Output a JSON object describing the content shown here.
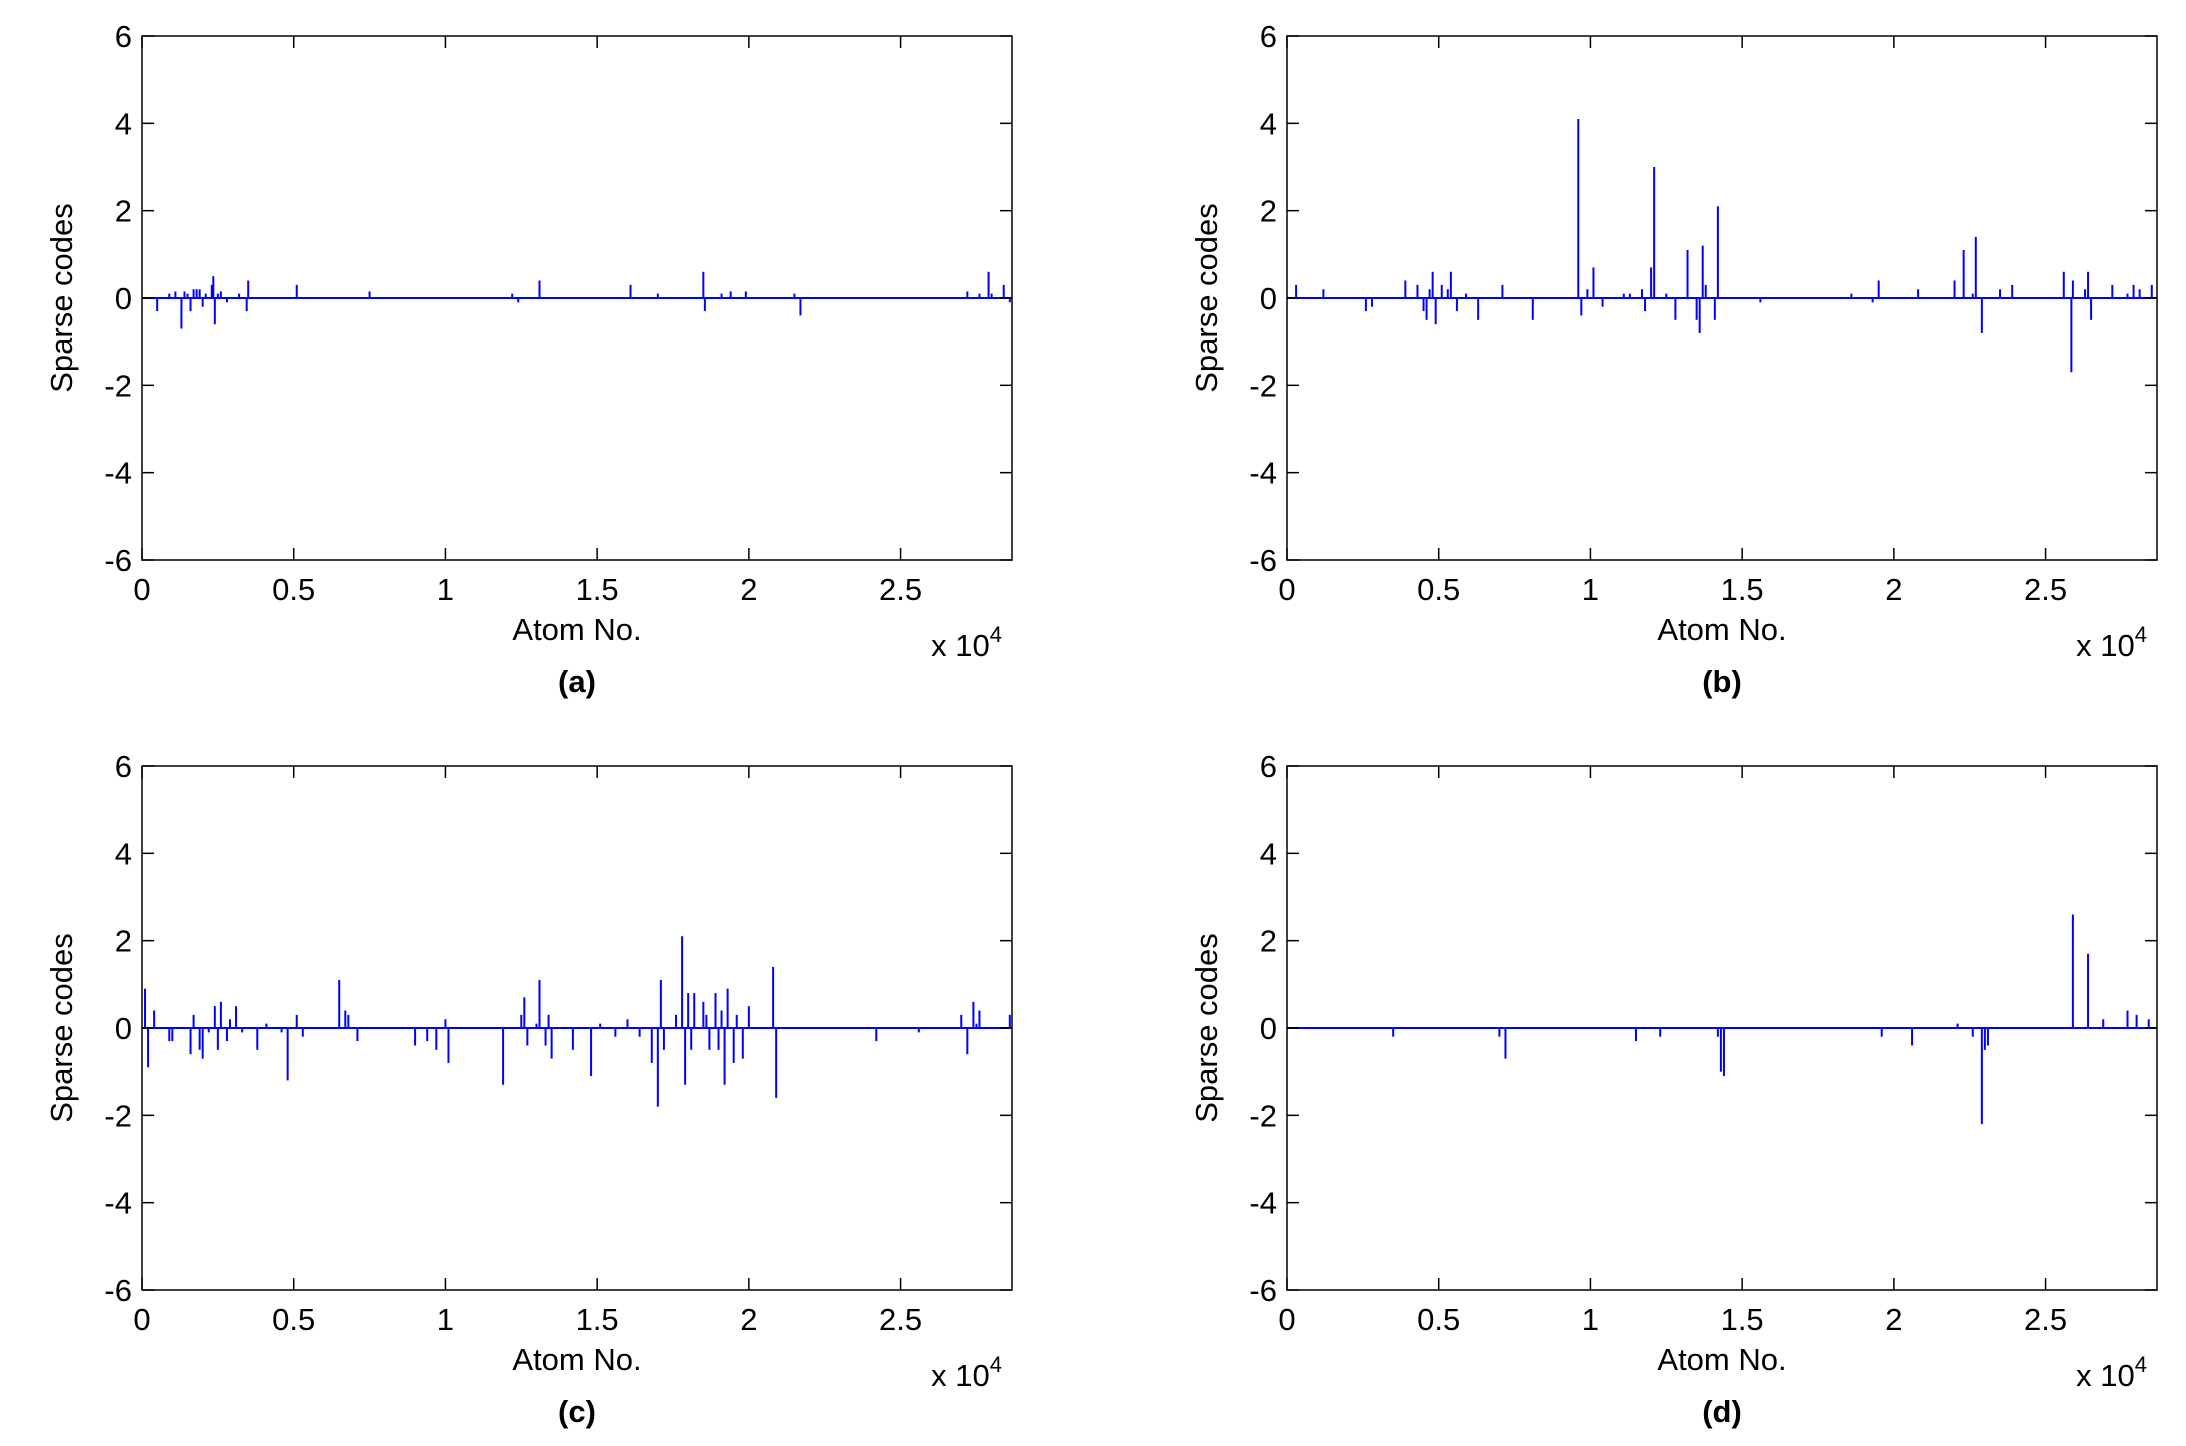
{
  "figure": {
    "axis_color": "#000000",
    "series_color": "#0000ff"
  },
  "chart_data": [
    {
      "type": "stem",
      "panel_label": "(a)",
      "xlabel": "Atom No.",
      "ylabel": "Sparse codes",
      "x_exponent_label": "x 10",
      "x_exponent_power": "4",
      "xlim": [
        0,
        28672
      ],
      "ylim": [
        -6,
        6
      ],
      "xticks": [
        0,
        5000,
        10000,
        15000,
        20000,
        25000
      ],
      "xtick_labels": [
        "0",
        "0.5",
        "1",
        "1.5",
        "2",
        "2.5"
      ],
      "yticks": [
        -6,
        -4,
        -2,
        0,
        2,
        4,
        6
      ],
      "ytick_labels": [
        "-6",
        "-4",
        "-2",
        "0",
        "2",
        "4",
        "6"
      ],
      "grid": false,
      "x": [
        500,
        900,
        1100,
        1300,
        1400,
        1500,
        1600,
        1700,
        1800,
        1900,
        2000,
        2100,
        2300,
        2350,
        2400,
        2500,
        2600,
        2800,
        3200,
        3450,
        3500,
        5100,
        7500,
        12200,
        12400,
        13100,
        16100,
        17000,
        18500,
        18550,
        19100,
        19400,
        19900,
        21500,
        21700,
        27200,
        27600,
        27900,
        28000,
        28400,
        28600
      ],
      "y": [
        -0.3,
        0.1,
        0.15,
        -0.7,
        0.15,
        0.1,
        -0.3,
        0.2,
        0.2,
        0.2,
        -0.2,
        0.1,
        0.3,
        0.5,
        -0.6,
        0.1,
        0.15,
        -0.1,
        0.1,
        -0.3,
        0.4,
        0.3,
        0.15,
        0.1,
        -0.1,
        0.4,
        0.3,
        0.1,
        0.6,
        -0.3,
        0.1,
        0.15,
        0.15,
        0.1,
        -0.4,
        0.15,
        0.1,
        0.6,
        0.1,
        0.3,
        -0.1
      ]
    },
    {
      "type": "stem",
      "panel_label": "(b)",
      "xlabel": "Atom No.",
      "ylabel": "Sparse codes",
      "x_exponent_label": "x 10",
      "x_exponent_power": "4",
      "xlim": [
        0,
        28672
      ],
      "ylim": [
        -6,
        6
      ],
      "xticks": [
        0,
        5000,
        10000,
        15000,
        20000,
        25000
      ],
      "xtick_labels": [
        "0",
        "0.5",
        "1",
        "1.5",
        "2",
        "2.5"
      ],
      "yticks": [
        -6,
        -4,
        -2,
        0,
        2,
        4,
        6
      ],
      "ytick_labels": [
        "-6",
        "-4",
        "-2",
        "0",
        "2",
        "4",
        "6"
      ],
      "grid": false,
      "x": [
        300,
        1200,
        2600,
        2800,
        3900,
        4300,
        4500,
        4600,
        4700,
        4800,
        4900,
        5100,
        5300,
        5400,
        5600,
        5900,
        6300,
        7100,
        8100,
        9600,
        9700,
        9900,
        10100,
        10400,
        11100,
        11300,
        11700,
        11800,
        12000,
        12100,
        12500,
        12800,
        13200,
        13500,
        13600,
        13700,
        13800,
        14100,
        14200,
        15600,
        18600,
        19300,
        19500,
        20800,
        22000,
        22300,
        22600,
        22700,
        22900,
        23500,
        23900,
        25600,
        25850,
        25900,
        26300,
        26400,
        26500,
        27200,
        27700,
        27900,
        28100,
        28500
      ],
      "y": [
        0.3,
        0.2,
        -0.3,
        -0.2,
        0.4,
        0.3,
        -0.3,
        -0.5,
        0.2,
        0.6,
        -0.6,
        0.3,
        0.2,
        0.6,
        -0.3,
        0.1,
        -0.5,
        0.3,
        -0.5,
        4.1,
        -0.4,
        0.2,
        0.7,
        -0.2,
        0.1,
        0.1,
        0.2,
        -0.3,
        0.7,
        3.0,
        0.1,
        -0.5,
        1.1,
        -0.5,
        -0.8,
        1.2,
        0.3,
        -0.5,
        2.1,
        -0.1,
        0.1,
        -0.1,
        0.4,
        0.2,
        0.4,
        1.1,
        0.1,
        1.4,
        -0.8,
        0.2,
        0.3,
        0.6,
        -1.7,
        0.4,
        0.2,
        0.6,
        -0.5,
        0.3,
        0.1,
        0.3,
        0.2,
        0.3
      ]
    },
    {
      "type": "stem",
      "panel_label": "(c)",
      "xlabel": "Atom No.",
      "ylabel": "Sparse codes",
      "x_exponent_label": "x 10",
      "x_exponent_power": "4",
      "xlim": [
        0,
        28672
      ],
      "ylim": [
        -6,
        6
      ],
      "xticks": [
        0,
        5000,
        10000,
        15000,
        20000,
        25000
      ],
      "xtick_labels": [
        "0",
        "0.5",
        "1",
        "1.5",
        "2",
        "2.5"
      ],
      "yticks": [
        -6,
        -4,
        -2,
        0,
        2,
        4,
        6
      ],
      "ytick_labels": [
        "-6",
        "-4",
        "-2",
        "0",
        "2",
        "4",
        "6"
      ],
      "grid": false,
      "x": [
        100,
        200,
        400,
        900,
        1000,
        1600,
        1700,
        1900,
        2000,
        2200,
        2400,
        2500,
        2600,
        2800,
        2900,
        3100,
        3300,
        3800,
        4100,
        4600,
        4800,
        5100,
        5300,
        6500,
        6700,
        6800,
        7100,
        9000,
        9400,
        9700,
        10000,
        10100,
        11900,
        12500,
        12600,
        12700,
        13000,
        13100,
        13300,
        13400,
        13500,
        14200,
        14800,
        15100,
        15600,
        16000,
        16400,
        16800,
        17000,
        17100,
        17200,
        17600,
        17800,
        17900,
        18000,
        18100,
        18200,
        18500,
        18600,
        18700,
        18900,
        19000,
        19100,
        19200,
        19300,
        19500,
        19600,
        19800,
        20000,
        20800,
        20900,
        24200,
        25600,
        27000,
        27200,
        27400,
        27500,
        27600,
        28600
      ],
      "y": [
        0.9,
        -0.9,
        0.4,
        -0.3,
        -0.3,
        -0.6,
        0.3,
        -0.5,
        -0.7,
        -0.1,
        0.5,
        -0.5,
        0.6,
        -0.3,
        0.2,
        0.5,
        -0.1,
        -0.5,
        0.1,
        -0.1,
        -1.2,
        0.3,
        -0.2,
        1.1,
        0.4,
        0.3,
        -0.3,
        -0.4,
        -0.3,
        -0.5,
        0.2,
        -0.8,
        -1.3,
        0.3,
        0.7,
        -0.4,
        0.1,
        1.1,
        -0.4,
        0.3,
        -0.7,
        -0.5,
        -1.1,
        0.1,
        -0.2,
        0.2,
        -0.2,
        -0.8,
        -1.8,
        1.1,
        -0.5,
        0.3,
        2.1,
        -1.3,
        0.8,
        -0.5,
        0.8,
        0.6,
        0.3,
        -0.5,
        0.8,
        -0.5,
        0.4,
        -1.3,
        0.9,
        -0.8,
        0.3,
        -0.7,
        0.5,
        1.4,
        -1.6,
        -0.3,
        -0.1,
        0.3,
        -0.6,
        0.6,
        0.1,
        0.4,
        0.3
      ]
    },
    {
      "type": "stem",
      "panel_label": "(d)",
      "xlabel": "Atom No.",
      "ylabel": "Sparse codes",
      "x_exponent_label": "x 10",
      "x_exponent_power": "4",
      "xlim": [
        0,
        28672
      ],
      "ylim": [
        -6,
        6
      ],
      "xticks": [
        0,
        5000,
        10000,
        15000,
        20000,
        25000
      ],
      "xtick_labels": [
        "0",
        "0.5",
        "1",
        "1.5",
        "2",
        "2.5"
      ],
      "yticks": [
        -6,
        -4,
        -2,
        0,
        2,
        4,
        6
      ],
      "ytick_labels": [
        "-6",
        "-4",
        "-2",
        "0",
        "2",
        "4",
        "6"
      ],
      "grid": false,
      "x": [
        3500,
        7000,
        7200,
        11500,
        12300,
        14200,
        14300,
        14400,
        19600,
        20600,
        22100,
        22600,
        22900,
        23000,
        23100,
        25900,
        26400,
        26900,
        27700,
        28000,
        28400
      ],
      "y": [
        -0.2,
        -0.2,
        -0.7,
        -0.3,
        -0.2,
        -0.2,
        -1.0,
        -1.1,
        -0.2,
        -0.4,
        0.1,
        -0.2,
        -2.2,
        -0.5,
        -0.4,
        2.6,
        1.7,
        0.2,
        0.4,
        0.3,
        0.2
      ]
    }
  ]
}
